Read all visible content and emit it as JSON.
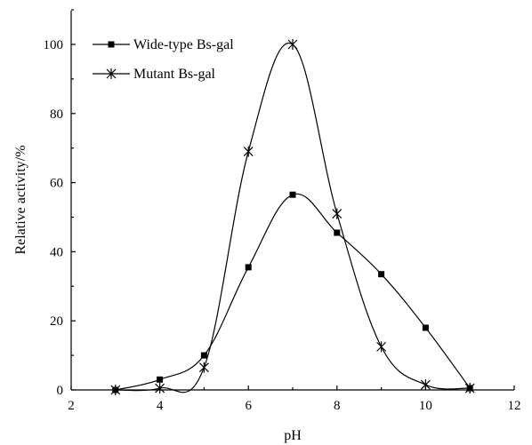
{
  "chart_data": {
    "type": "line",
    "title": "",
    "xlabel": "pH",
    "ylabel": "Relative activity/%",
    "xlim": [
      2,
      12
    ],
    "ylim": [
      0,
      110
    ],
    "xticks": [
      2,
      4,
      6,
      8,
      10,
      12
    ],
    "yticks": [
      0,
      20,
      40,
      60,
      80,
      100
    ],
    "grid": false,
    "legend_position": "top-left",
    "series": [
      {
        "name": "Wide-type Bs-gal",
        "marker": "square",
        "x": [
          3,
          4,
          5,
          6,
          7,
          8,
          9,
          10,
          11
        ],
        "y": [
          0,
          3,
          10,
          35.5,
          56.5,
          45.5,
          33.5,
          18,
          0.5
        ]
      },
      {
        "name": "Mutant Bs-gal",
        "marker": "asterisk",
        "x": [
          3,
          4,
          5,
          6,
          7,
          8,
          9,
          10,
          11
        ],
        "y": [
          0,
          0.5,
          6.5,
          69,
          100,
          51,
          12.5,
          1.5,
          0.5
        ]
      }
    ]
  }
}
